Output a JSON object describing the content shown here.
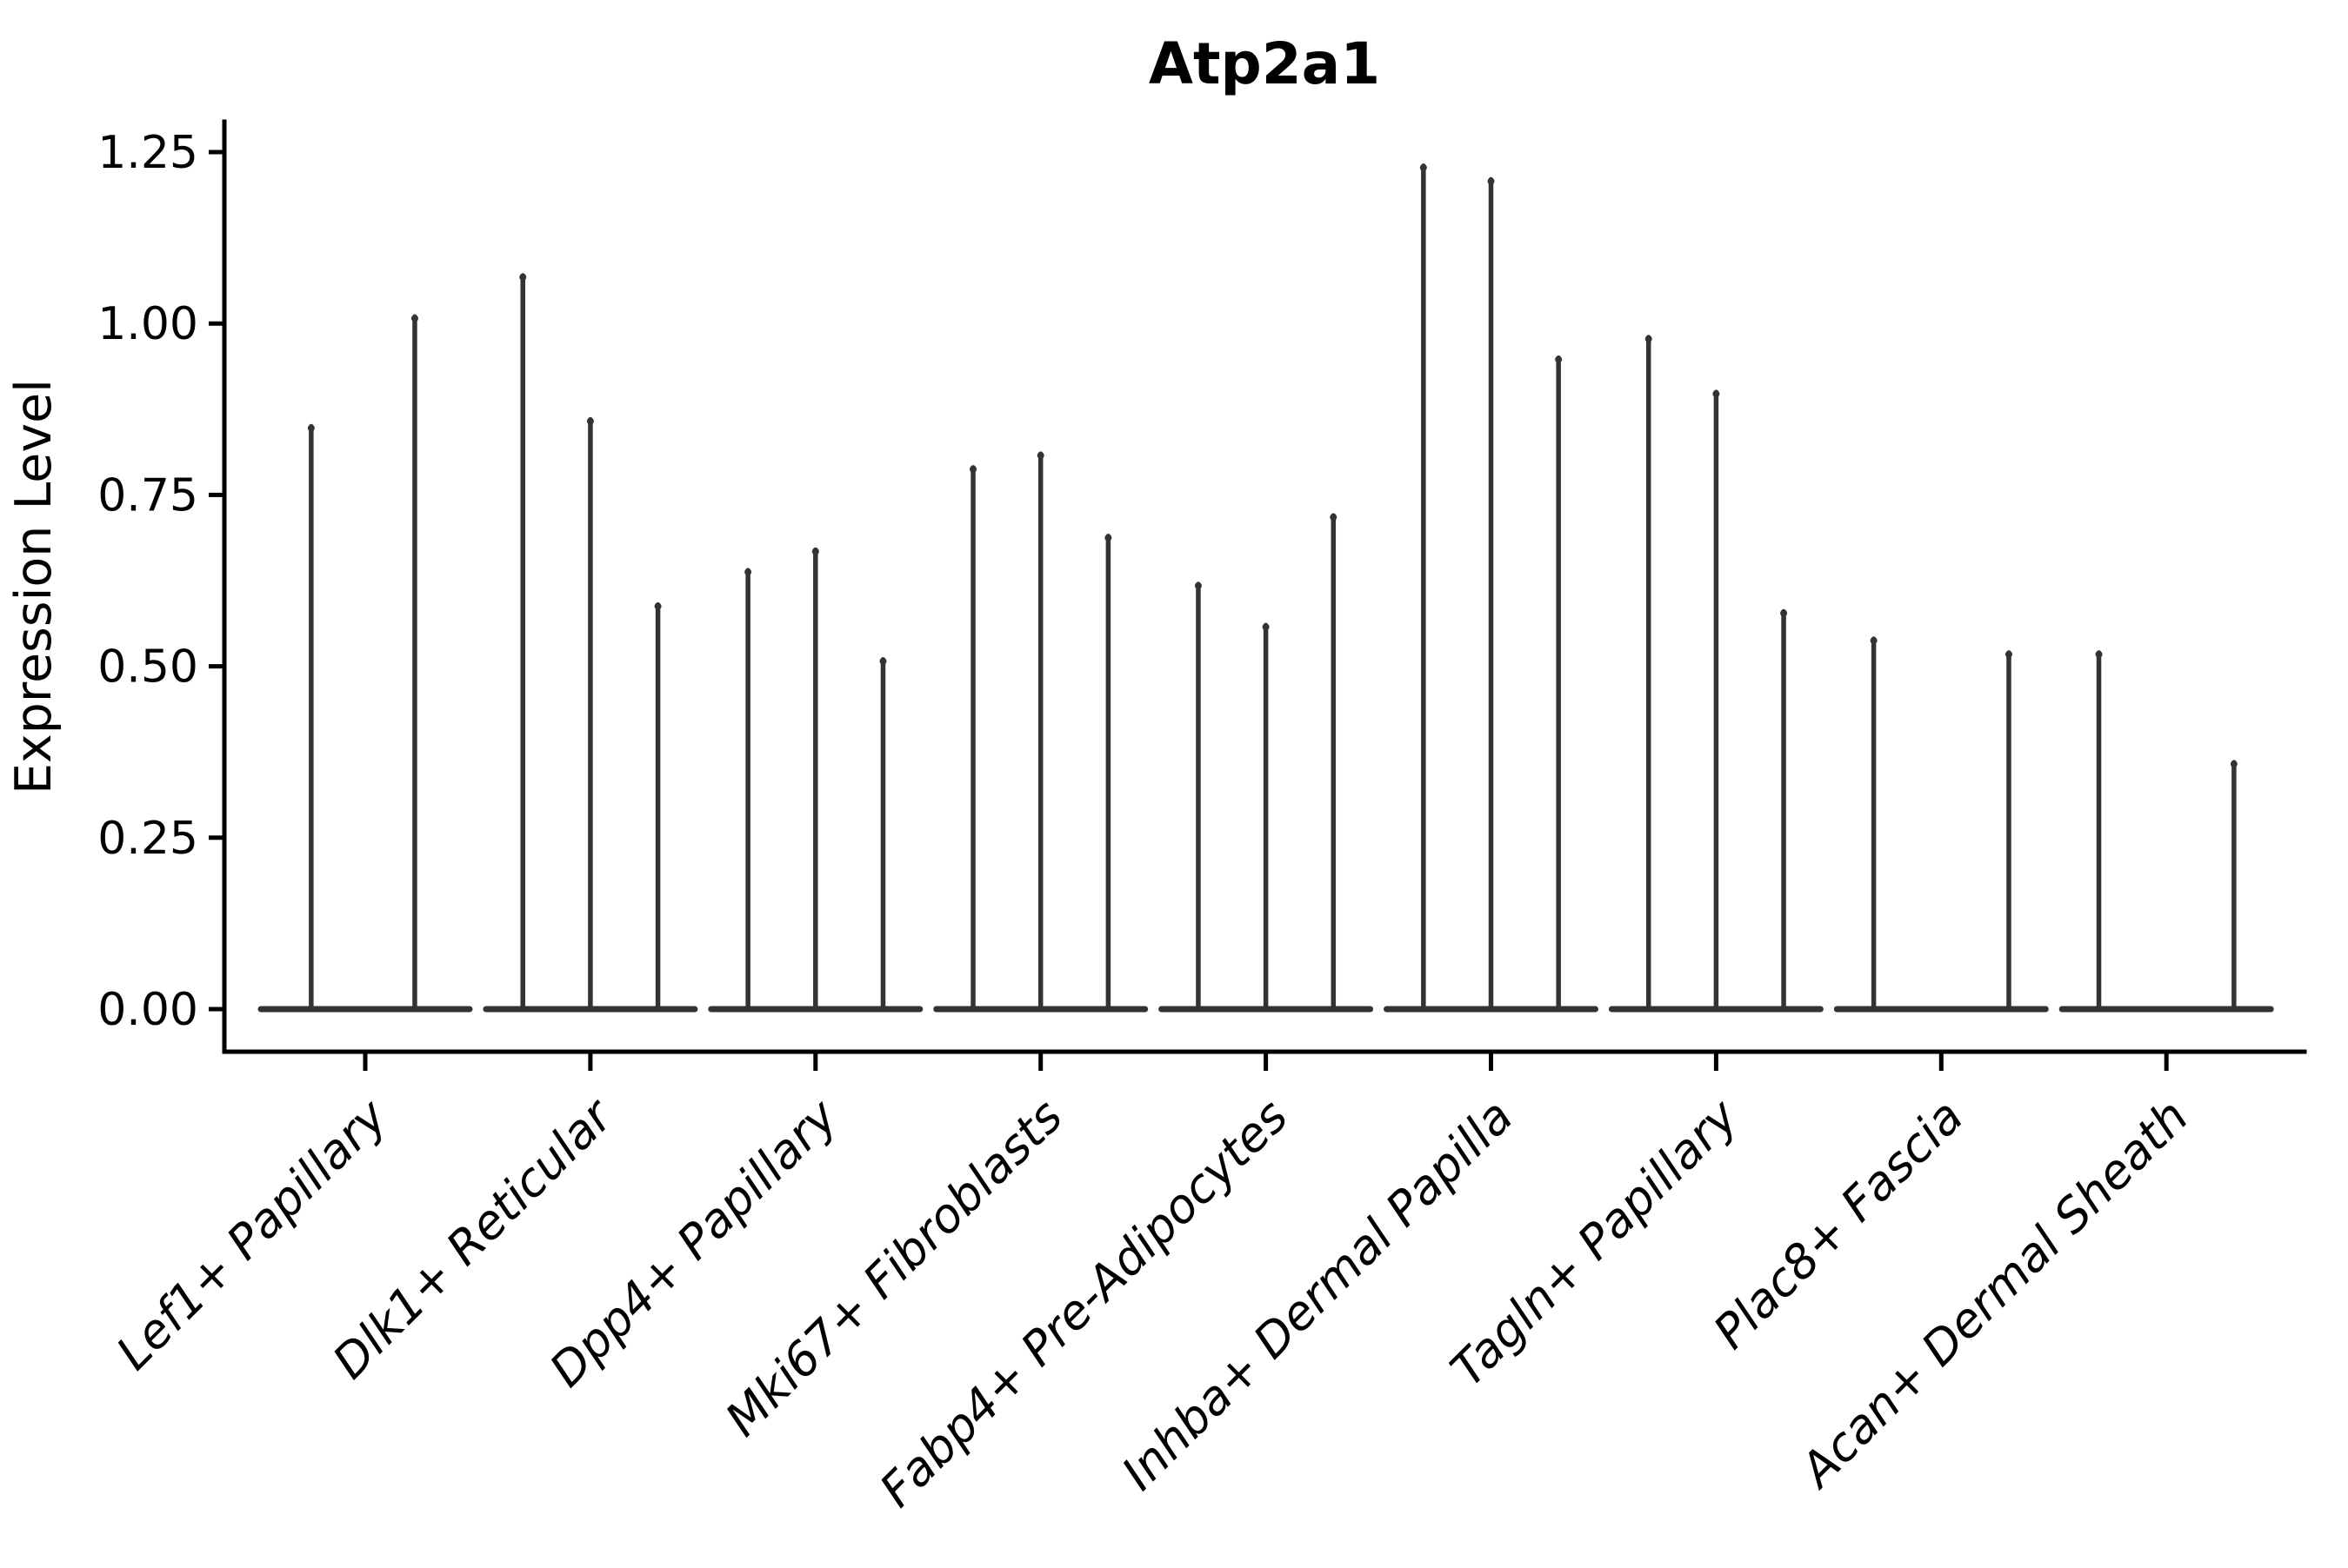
{
  "style": {
    "background": "#ffffff",
    "axis_color": "#000000",
    "text_color": "#000000",
    "violin_color": "#333333"
  },
  "chart_data": {
    "type": "violin",
    "title": "Atp2a1",
    "xlabel": "",
    "ylabel": "Expression Level",
    "ylim": [
      0,
      1.32
    ],
    "yticks": [
      0.0,
      0.25,
      0.5,
      0.75,
      1.0,
      1.25
    ],
    "ytick_labels": [
      "0.00",
      "0.25",
      "0.50",
      "0.75",
      "1.00",
      "1.25"
    ],
    "grid": false,
    "legend": false,
    "categories": [
      "Lef1+ Papillary",
      "Dlk1+ Reticular",
      "Dpp4+ Papillary",
      "Mki67+ Fibroblasts",
      "Fabp4+ Pre-Adipocytes",
      "Inhba+ Dermal Papilla",
      "Tagln+ Papillary",
      "Plac8+ Fascia",
      "Acan+ Dermal Sheath"
    ],
    "series": [
      {
        "category": "Lef1+ Papillary",
        "violin_peaks": [
          0.85,
          1.01
        ],
        "offsets": [
          -0.24,
          0.22
        ]
      },
      {
        "category": "Dlk1+ Reticular",
        "violin_peaks": [
          1.07,
          0.86,
          0.59
        ],
        "offsets": [
          -0.3,
          0.0,
          0.3
        ]
      },
      {
        "category": "Dpp4+ Papillary",
        "violin_peaks": [
          0.64,
          0.67,
          0.51
        ],
        "offsets": [
          -0.3,
          0.0,
          0.3
        ]
      },
      {
        "category": "Mki67+ Fibroblasts",
        "violin_peaks": [
          0.79,
          0.81,
          0.69
        ],
        "offsets": [
          -0.3,
          0.0,
          0.3
        ]
      },
      {
        "category": "Fabp4+ Pre-Adipocytes",
        "violin_peaks": [
          0.62,
          0.56,
          0.72
        ],
        "offsets": [
          -0.3,
          0.0,
          0.3
        ]
      },
      {
        "category": "Inhba+ Dermal Papilla",
        "violin_peaks": [
          1.23,
          1.21,
          0.95
        ],
        "offsets": [
          -0.3,
          0.0,
          0.3
        ]
      },
      {
        "category": "Tagln+ Papillary",
        "violin_peaks": [
          0.98,
          0.9,
          0.58
        ],
        "offsets": [
          -0.3,
          0.0,
          0.3
        ]
      },
      {
        "category": "Plac8+ Fascia",
        "violin_peaks": [
          0.54,
          0.52
        ],
        "offsets": [
          -0.3,
          0.3
        ]
      },
      {
        "category": "Acan+ Dermal Sheath",
        "violin_peaks": [
          0.52,
          0.36
        ],
        "offsets": [
          -0.3,
          0.3
        ]
      }
    ],
    "baseline_value": 0.0
  }
}
